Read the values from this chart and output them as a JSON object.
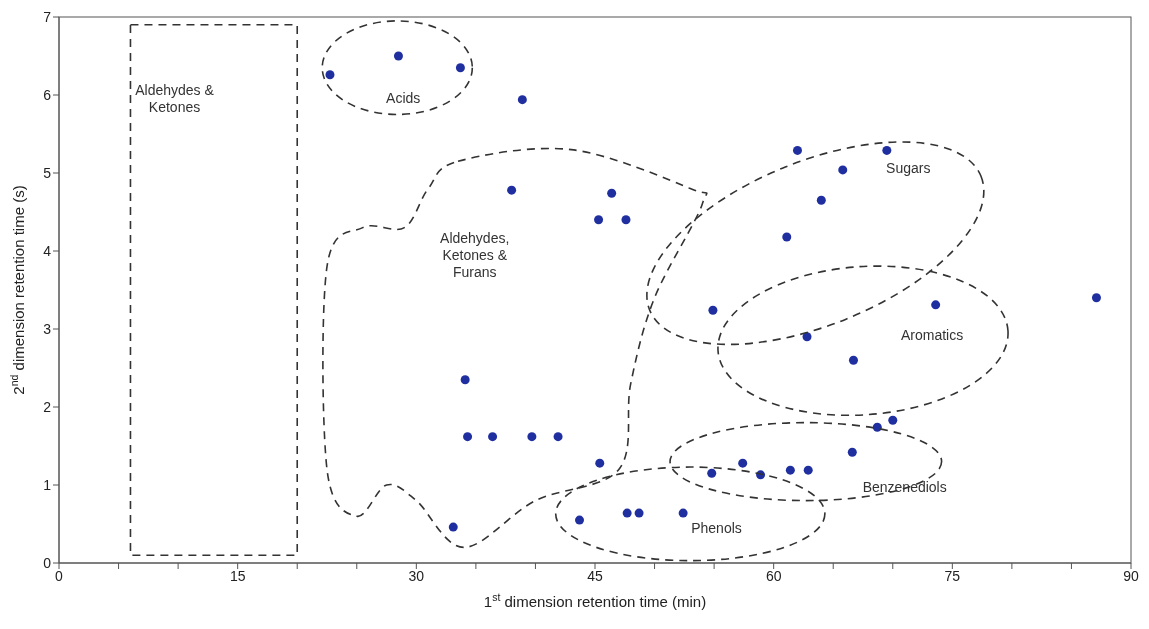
{
  "chart_data": {
    "type": "scatter",
    "xlabel": "1$^{st}$ dimension retention time (min)",
    "ylabel": "2$^{nd}$ dimension retention time (s)",
    "xlim": [
      0,
      90
    ],
    "ylim": [
      0,
      7
    ],
    "xticks": [
      0,
      {
        "value": 5,
        "label": null
      },
      {
        "value": 10,
        "label": null
      },
      15,
      {
        "value": 20,
        "label": null
      },
      {
        "value": 25,
        "label": null
      },
      30,
      {
        "value": 35,
        "label": null
      },
      {
        "value": 40,
        "label": null
      },
      45,
      {
        "value": 50,
        "label": null
      },
      {
        "value": 55,
        "label": null
      },
      60,
      {
        "value": 65,
        "label": null
      },
      {
        "value": 70,
        "label": null
      },
      75,
      {
        "value": 80,
        "label": null
      },
      {
        "value": 85,
        "label": null
      },
      90
    ],
    "yticks": [
      0,
      1,
      2,
      3,
      4,
      5,
      6,
      7
    ],
    "grid": false,
    "marker": "circle",
    "series": [
      {
        "color": "#1f2fa0",
        "x": [
          22.75,
          28.5,
          33.7,
          38.9,
          38.0,
          46.4,
          47.6,
          45.3,
          62.0,
          65.8,
          64.0,
          69.5,
          61.1,
          87.1,
          54.9,
          73.6,
          66.7,
          34.1,
          34.3,
          36.4,
          39.7,
          41.9,
          45.4,
          33.1,
          47.7,
          48.7,
          52.4,
          43.7,
          54.8,
          57.4,
          58.9,
          61.4,
          62.9,
          66.6,
          68.7,
          70.0,
          62.8
        ],
        "values": [
          6.26,
          6.5,
          6.35,
          5.94,
          4.78,
          4.74,
          4.4,
          4.4,
          5.29,
          5.04,
          4.65,
          5.29,
          4.18,
          3.4,
          3.24,
          3.31,
          2.6,
          2.35,
          1.62,
          1.62,
          1.62,
          1.62,
          1.28,
          0.46,
          0.64,
          0.64,
          0.64,
          0.55,
          1.15,
          1.28,
          1.13,
          1.19,
          1.19,
          1.42,
          1.74,
          1.83,
          2.9
        ]
      }
    ],
    "annotations": [
      "Aldehydes &\nKetones",
      "Acids",
      "Aldehydes,\nKetones &\nFurans",
      "Sugars",
      "Aromatics",
      "Benzenediols",
      "Phenols"
    ]
  }
}
